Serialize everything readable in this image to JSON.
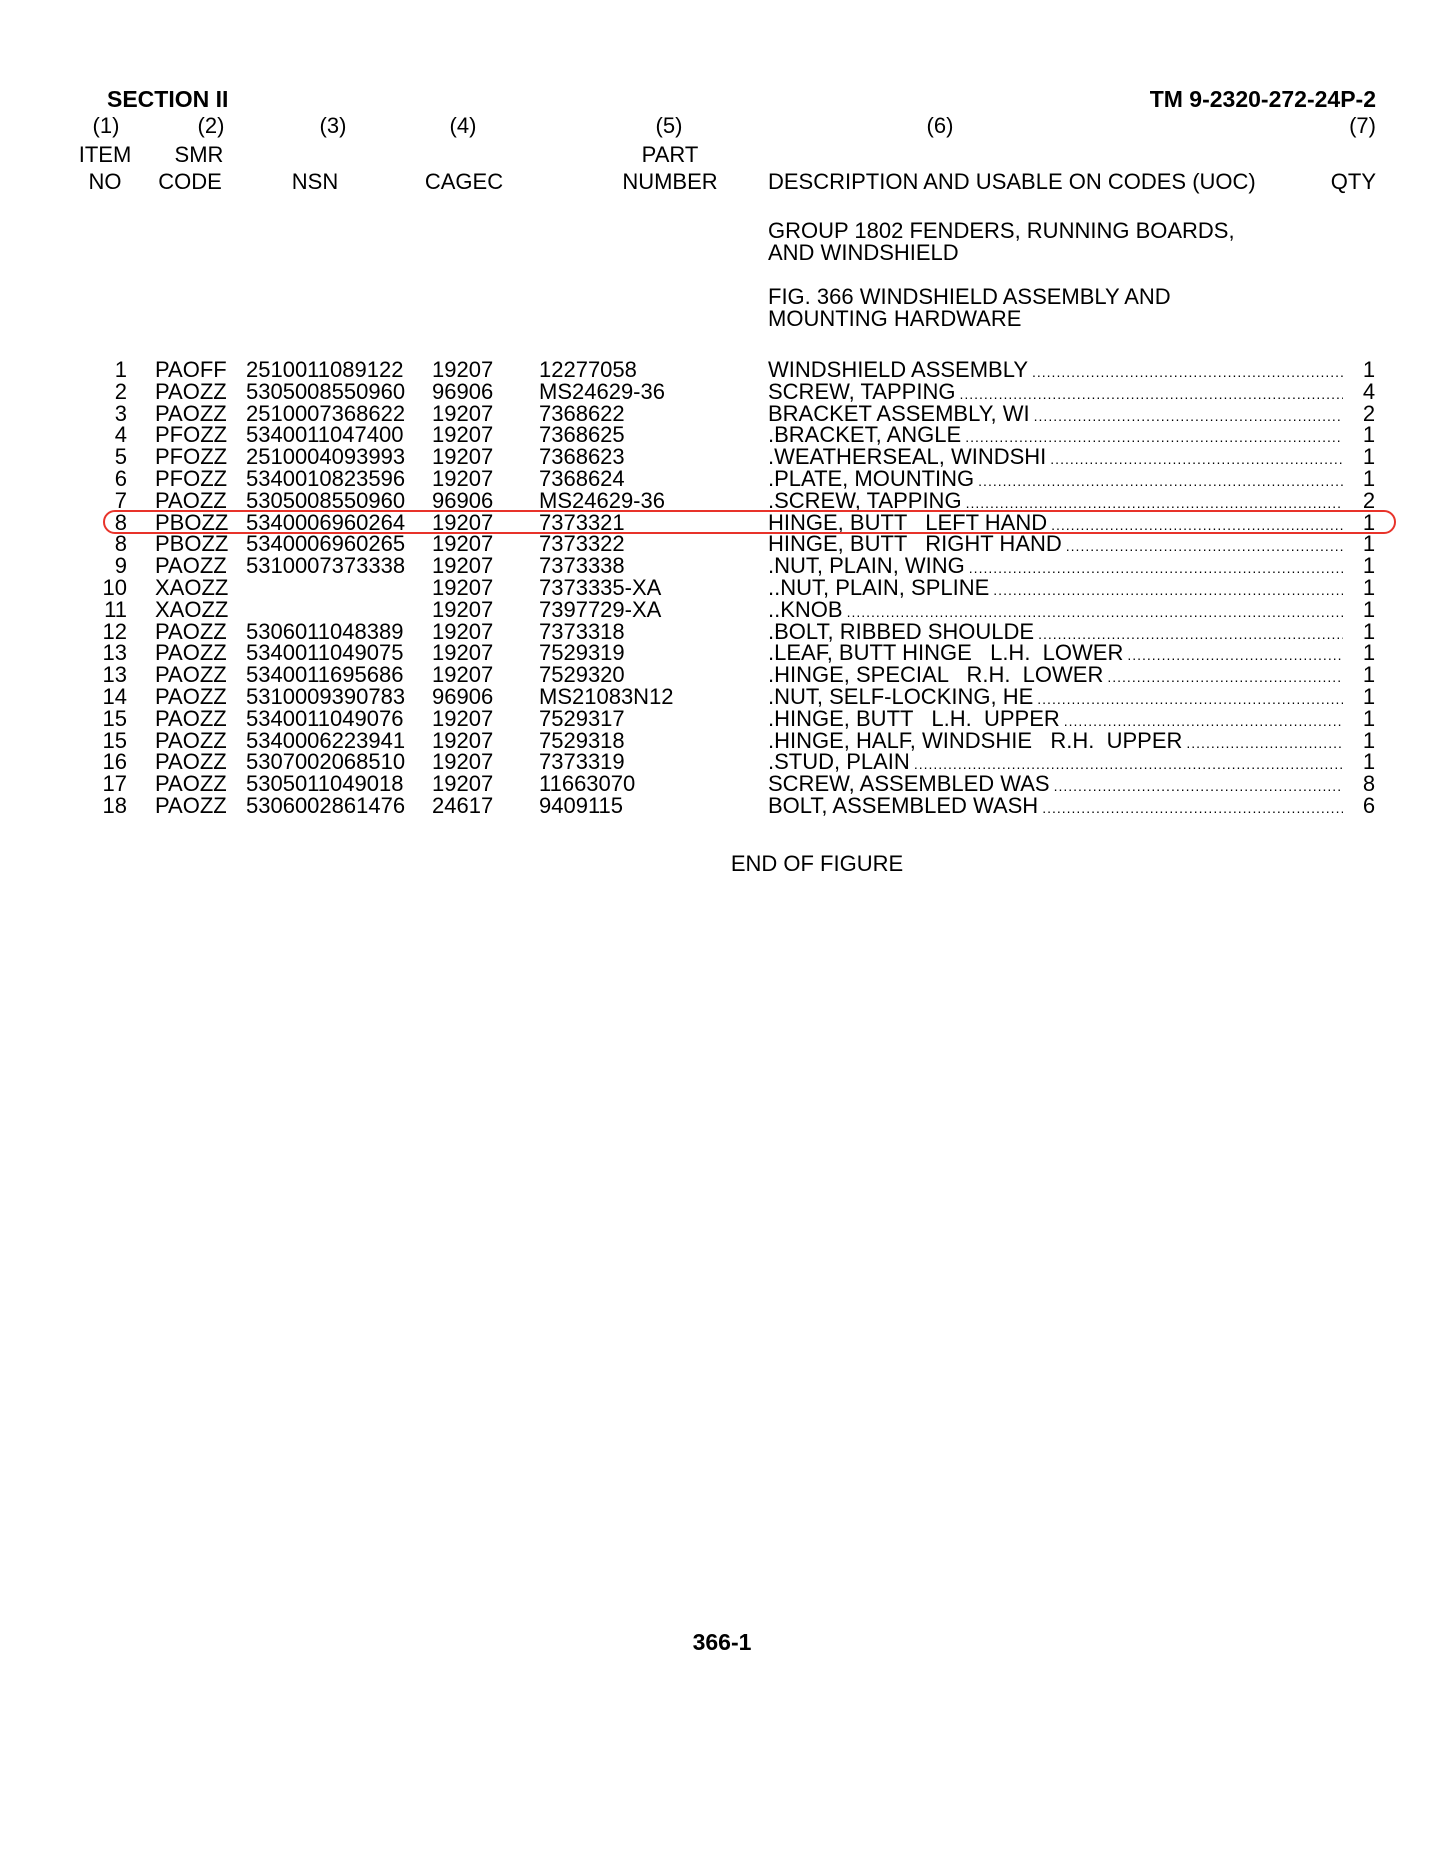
{
  "header": {
    "section": "SECTION II",
    "manual": "TM 9-2320-272-24P-2"
  },
  "columns": [
    {
      "num": "(1)",
      "line1": "ITEM",
      "line2": "NO"
    },
    {
      "num": "(2)",
      "line1": "SMR",
      "line2": "CODE"
    },
    {
      "num": "(3)",
      "line1": "",
      "line2": "NSN"
    },
    {
      "num": "(4)",
      "line1": "",
      "line2": "CAGEC"
    },
    {
      "num": "(5)",
      "line1": "PART",
      "line2": "NUMBER"
    },
    {
      "num": "(6)",
      "line1": "",
      "line2": "DESCRIPTION AND USABLE ON CODES (UOC)"
    },
    {
      "num": "(7)",
      "line1": "",
      "line2": "QTY"
    }
  ],
  "group": {
    "line1": "GROUP 1802 FENDERS, RUNNING BOARDS,",
    "line2": "AND WINDSHIELD"
  },
  "figure": {
    "line1": "FIG.  366 WINDSHIELD ASSEMBLY AND",
    "line2": "MOUNTING HARDWARE"
  },
  "highlight_color": "#e8332a",
  "highlighted_row": 7,
  "rows": [
    {
      "item": "1",
      "smr": "PAOFF",
      "nsn": "2510011089122",
      "cagec": "19207",
      "part": "12277058",
      "desc": "WINDSHIELD ASSEMBLY",
      "qty": "1"
    },
    {
      "item": "2",
      "smr": "PAOZZ",
      "nsn": "5305008550960",
      "cagec": "96906",
      "part": "MS24629-36",
      "desc": "SCREW, TAPPING",
      "qty": "4"
    },
    {
      "item": "3",
      "smr": "PAOZZ",
      "nsn": "2510007368622",
      "cagec": "19207",
      "part": "7368622",
      "desc": "BRACKET ASSEMBLY, WI",
      "qty": "2"
    },
    {
      "item": "4",
      "smr": "PFOZZ",
      "nsn": "5340011047400",
      "cagec": "19207",
      "part": "7368625",
      "desc": ".BRACKET, ANGLE",
      "qty": "1"
    },
    {
      "item": "5",
      "smr": "PFOZZ",
      "nsn": "2510004093993",
      "cagec": "19207",
      "part": "7368623",
      "desc": ".WEATHERSEAL, WINDSHI",
      "qty": "1"
    },
    {
      "item": "6",
      "smr": "PFOZZ",
      "nsn": "5340010823596",
      "cagec": "19207",
      "part": "7368624",
      "desc": ".PLATE, MOUNTING",
      "qty": "1"
    },
    {
      "item": "7",
      "smr": "PAOZZ",
      "nsn": "5305008550960",
      "cagec": "96906",
      "part": "MS24629-36",
      "desc": ".SCREW, TAPPING",
      "qty": "2"
    },
    {
      "item": "8",
      "smr": "PBOZZ",
      "nsn": "5340006960264",
      "cagec": "19207",
      "part": "7373321",
      "desc": "HINGE, BUTT   LEFT HAND",
      "qty": "1"
    },
    {
      "item": "8",
      "smr": "PBOZZ",
      "nsn": "5340006960265",
      "cagec": "19207",
      "part": "7373322",
      "desc": "HINGE, BUTT   RIGHT HAND",
      "qty": "1"
    },
    {
      "item": "9",
      "smr": "PAOZZ",
      "nsn": "5310007373338",
      "cagec": "19207",
      "part": "7373338",
      "desc": ".NUT, PLAIN, WING",
      "qty": "1"
    },
    {
      "item": "10",
      "smr": "XAOZZ",
      "nsn": "",
      "cagec": "19207",
      "part": "7373335-XA",
      "desc": "..NUT, PLAIN, SPLINE",
      "qty": "1"
    },
    {
      "item": "11",
      "smr": "XAOZZ",
      "nsn": "",
      "cagec": "19207",
      "part": "7397729-XA",
      "desc": "..KNOB",
      "qty": "1"
    },
    {
      "item": "12",
      "smr": "PAOZZ",
      "nsn": "5306011048389",
      "cagec": "19207",
      "part": "7373318",
      "desc": ".BOLT, RIBBED SHOULDE",
      "qty": "1"
    },
    {
      "item": "13",
      "smr": "PAOZZ",
      "nsn": "5340011049075",
      "cagec": "19207",
      "part": "7529319",
      "desc": ".LEAF, BUTT HINGE   L.H.  LOWER",
      "qty": "1"
    },
    {
      "item": "13",
      "smr": "PAOZZ",
      "nsn": "5340011695686",
      "cagec": "19207",
      "part": "7529320",
      "desc": ".HINGE, SPECIAL   R.H.  LOWER",
      "qty": "1"
    },
    {
      "item": "14",
      "smr": "PAOZZ",
      "nsn": "5310009390783",
      "cagec": "96906",
      "part": "MS21083N12",
      "desc": ".NUT, SELF-LOCKING, HE",
      "qty": "1"
    },
    {
      "item": "15",
      "smr": "PAOZZ",
      "nsn": "5340011049076",
      "cagec": "19207",
      "part": "7529317",
      "desc": ".HINGE, BUTT   L.H.  UPPER",
      "qty": "1"
    },
    {
      "item": "15",
      "smr": "PAOZZ",
      "nsn": "5340006223941",
      "cagec": "19207",
      "part": "7529318",
      "desc": ".HINGE, HALF, WINDSHIE   R.H.  UPPER",
      "qty": "1"
    },
    {
      "item": "16",
      "smr": "PAOZZ",
      "nsn": "5307002068510",
      "cagec": "19207",
      "part": "7373319",
      "desc": ".STUD, PLAIN",
      "qty": "1"
    },
    {
      "item": "17",
      "smr": "PAOZZ",
      "nsn": "5305011049018",
      "cagec": "19207",
      "part": "11663070",
      "desc": "SCREW, ASSEMBLED WAS",
      "qty": "8"
    },
    {
      "item": "18",
      "smr": "PAOZZ",
      "nsn": "5306002861476",
      "cagec": "24617",
      "part": "9409115",
      "desc": "BOLT, ASSEMBLED WASH",
      "qty": "6"
    }
  ],
  "end_text": "END OF FIGURE",
  "page_number": "366-1"
}
